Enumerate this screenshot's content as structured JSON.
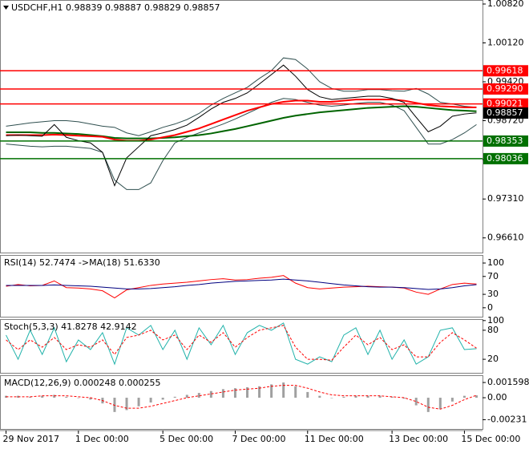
{
  "chart_data": [
    {
      "type": "line",
      "title": "USDCHF,H1  0.98839 0.98887 0.98829 0.98857",
      "categories": [
        "29 Nov 2017",
        null,
        null,
        null,
        null,
        null,
        "1 Dec 00:00",
        null,
        null,
        null,
        null,
        null,
        null,
        "5 Dec 00:00",
        null,
        null,
        null,
        null,
        null,
        "7 Dec 00:00",
        null,
        null,
        null,
        null,
        null,
        "11 Dec 00:00",
        null,
        null,
        null,
        null,
        null,
        null,
        "13 Dec 00:00",
        null,
        null,
        null,
        null,
        null,
        "15 Dec 00:00",
        null
      ],
      "ylim": [
        0.96346,
        1.00892
      ],
      "yticks": [
        {
          "value": 1.0082,
          "label": "1.00820"
        },
        {
          "value": 1.0012,
          "label": "1.00120"
        },
        {
          "value": 0.9942,
          "label": "0.99420"
        },
        {
          "value": 0.9872,
          "label": "0.98720"
        },
        {
          "value": 0.9802,
          "label": "0.98020"
        },
        {
          "value": 0.9731,
          "label": "0.97310"
        },
        {
          "value": 0.9661,
          "label": "0.96610"
        }
      ],
      "hlines": [
        {
          "value": 0.99618,
          "color": "#ff0000"
        },
        {
          "value": 0.9929,
          "label": "0.99290",
          "color": "#ff0000"
        },
        {
          "value": 0.99021,
          "color": "#ff0000"
        },
        {
          "value": 0.98353,
          "color": "#007000"
        },
        {
          "value": 0.98036,
          "color": "#007000"
        }
      ],
      "last_price": 0.98857,
      "series": [
        {
          "color": "#2f4f4f",
          "style": "solid",
          "values": [
            0.9862,
            0.9865,
            0.9868,
            0.987,
            0.9872,
            0.9872,
            0.987,
            0.9866,
            0.9862,
            0.986,
            0.985,
            0.9845,
            0.9852,
            0.986,
            0.9866,
            0.9874,
            0.9885,
            0.99,
            0.9912,
            0.9922,
            0.9932,
            0.9948,
            0.9962,
            0.9985,
            0.9982,
            0.9965,
            0.9942,
            0.993,
            0.9925,
            0.9925,
            0.9928,
            0.9928,
            0.9926,
            0.9925,
            0.993,
            0.992,
            0.9905,
            0.9902,
            0.9898,
            0.9896
          ]
        },
        {
          "color": "#2f4f4f",
          "style": "solid",
          "values": [
            0.983,
            0.9828,
            0.9826,
            0.9825,
            0.9826,
            0.9826,
            0.9824,
            0.9822,
            0.9815,
            0.9765,
            0.9748,
            0.9748,
            0.976,
            0.98,
            0.9832,
            0.9842,
            0.985,
            0.9858,
            0.9866,
            0.9875,
            0.9885,
            0.9895,
            0.9905,
            0.9912,
            0.991,
            0.9905,
            0.99,
            0.9898,
            0.99,
            0.9903,
            0.9905,
            0.9905,
            0.99,
            0.989,
            0.986,
            0.983,
            0.983,
            0.9838,
            0.985,
            0.9865
          ]
        },
        {
          "color": "#006400",
          "style": "thick",
          "values": [
            0.9851,
            0.9851,
            0.9851,
            0.985,
            0.985,
            0.9849,
            0.9848,
            0.9846,
            0.9844,
            0.9841,
            0.984,
            0.984,
            0.984,
            0.9841,
            0.9842,
            0.9844,
            0.9846,
            0.9849,
            0.9853,
            0.9857,
            0.9862,
            0.9867,
            0.9872,
            0.9877,
            0.9881,
            0.9884,
            0.9887,
            0.9889,
            0.9891,
            0.9893,
            0.9895,
            0.9896,
            0.9897,
            0.9898,
            0.9897,
            0.9895,
            0.9893,
            0.9891,
            0.989,
            0.9889
          ]
        },
        {
          "color": "#ff0000",
          "style": "thick",
          "values": [
            0.9846,
            0.9846,
            0.9846,
            0.9846,
            0.9847,
            0.9846,
            0.9845,
            0.9844,
            0.9843,
            0.9838,
            0.9836,
            0.9836,
            0.9838,
            0.9842,
            0.9846,
            0.9852,
            0.9858,
            0.9866,
            0.9874,
            0.9882,
            0.989,
            0.9896,
            0.9902,
            0.9906,
            0.9908,
            0.9908,
            0.9906,
            0.9906,
            0.9908,
            0.991,
            0.991,
            0.991,
            0.991,
            0.9908,
            0.9904,
            0.99,
            0.9898,
            0.9897,
            0.9896,
            0.9896
          ]
        },
        {
          "color": "#000000",
          "style": "solid",
          "values": [
            0.9845,
            0.9846,
            0.9845,
            0.9844,
            0.9865,
            0.9842,
            0.9836,
            0.9832,
            0.9815,
            0.9755,
            0.9805,
            0.9825,
            0.9845,
            0.985,
            0.9856,
            0.9864,
            0.9878,
            0.9893,
            0.9905,
            0.9912,
            0.9922,
            0.9938,
            0.9955,
            0.9972,
            0.9952,
            0.9928,
            0.9915,
            0.991,
            0.9912,
            0.9914,
            0.9916,
            0.9916,
            0.9912,
            0.9905,
            0.9878,
            0.9852,
            0.9862,
            0.988,
            0.9884,
            0.9886
          ]
        }
      ]
    },
    {
      "type": "line",
      "title": "RSI(14) 52.7474 ->MA(18) 51.6330",
      "ylim": [
        -20,
        118
      ],
      "yticks": [
        100,
        70,
        30,
        0
      ],
      "series": [
        {
          "color": "#ff0000",
          "style": "solid",
          "values": [
            48,
            52,
            49,
            50,
            60,
            45,
            44,
            42,
            38,
            22,
            40,
            45,
            50,
            53,
            55,
            57,
            60,
            63,
            65,
            62,
            63,
            66,
            68,
            72,
            55,
            45,
            42,
            44,
            46,
            47,
            48,
            47,
            46,
            44,
            35,
            30,
            42,
            52,
            55,
            53
          ]
        },
        {
          "color": "#000080",
          "style": "solid",
          "values": [
            50,
            50,
            50,
            50,
            51,
            50,
            49,
            48,
            46,
            44,
            42,
            42,
            43,
            45,
            47,
            50,
            52,
            55,
            57,
            59,
            60,
            61,
            62,
            64,
            62,
            60,
            57,
            54,
            51,
            49,
            47,
            46,
            46,
            45,
            43,
            41,
            42,
            45,
            49,
            51.6
          ]
        }
      ]
    },
    {
      "type": "line",
      "title": "Stoch(5,3,3) 41.8278 42.9142",
      "ylim": [
        -8,
        103
      ],
      "yticks": [
        100,
        80,
        20
      ],
      "series": [
        {
          "color": "#20b2aa",
          "style": "solid",
          "values": [
            70,
            20,
            80,
            30,
            85,
            15,
            60,
            40,
            75,
            10,
            85,
            70,
            90,
            40,
            80,
            20,
            85,
            50,
            90,
            30,
            75,
            90,
            80,
            95,
            20,
            10,
            25,
            15,
            70,
            85,
            30,
            80,
            20,
            60,
            10,
            25,
            80,
            85,
            40,
            42
          ]
        },
        {
          "color": "#ff0000",
          "style": "dashed",
          "values": [
            60,
            40,
            60,
            45,
            65,
            40,
            50,
            45,
            60,
            30,
            65,
            70,
            80,
            60,
            70,
            40,
            70,
            55,
            75,
            45,
            65,
            80,
            85,
            90,
            45,
            20,
            20,
            18,
            45,
            70,
            50,
            65,
            40,
            50,
            25,
            25,
            55,
            75,
            60,
            43
          ]
        }
      ]
    },
    {
      "type": "bar",
      "title": "MACD(12,26,9) 0.000248 0.000255",
      "ylim": [
        -0.00328,
        0.00236
      ],
      "yticks": [
        0.001598,
        {
          "value": 0,
          "label": "0.00"
        },
        -0.00231
      ],
      "series": [
        {
          "color": "#a0a0a0",
          "style": "bar",
          "values": [
            0.0002,
            0.0002,
            0.0001,
            0.0002,
            0.0003,
            0.0001,
            0,
            -0.0002,
            -0.0006,
            -0.0015,
            -0.0013,
            -0.0009,
            -0.0005,
            -0.0002,
            0.0001,
            0.0003,
            0.0005,
            0.0007,
            0.0009,
            0.001,
            0.0011,
            0.0012,
            0.0014,
            0.0016,
            0.0012,
            0.0006,
            0.0002,
            0,
            0.0001,
            0.0002,
            0.0002,
            0.0002,
            0.0001,
            -0.0001,
            -0.0008,
            -0.0015,
            -0.0012,
            -0.0004,
            0.0002,
            0.000248
          ]
        },
        {
          "color": "#ff0000",
          "style": "dashed",
          "values": [
            0.0001,
            0.0001,
            0.0001,
            0.0002,
            0.0002,
            0.0002,
            0.0001,
            0,
            -0.0003,
            -0.0008,
            -0.0011,
            -0.0011,
            -0.0009,
            -0.0006,
            -0.0003,
            0,
            0.0002,
            0.0004,
            0.0006,
            0.0008,
            0.0009,
            0.001,
            0.0012,
            0.0013,
            0.0013,
            0.001,
            0.0006,
            0.0003,
            0.0002,
            0.0002,
            0.0002,
            0.0002,
            0.0001,
            0,
            -0.0004,
            -0.001,
            -0.0012,
            -0.0008,
            -0.0002,
            0.000255
          ]
        }
      ]
    }
  ]
}
